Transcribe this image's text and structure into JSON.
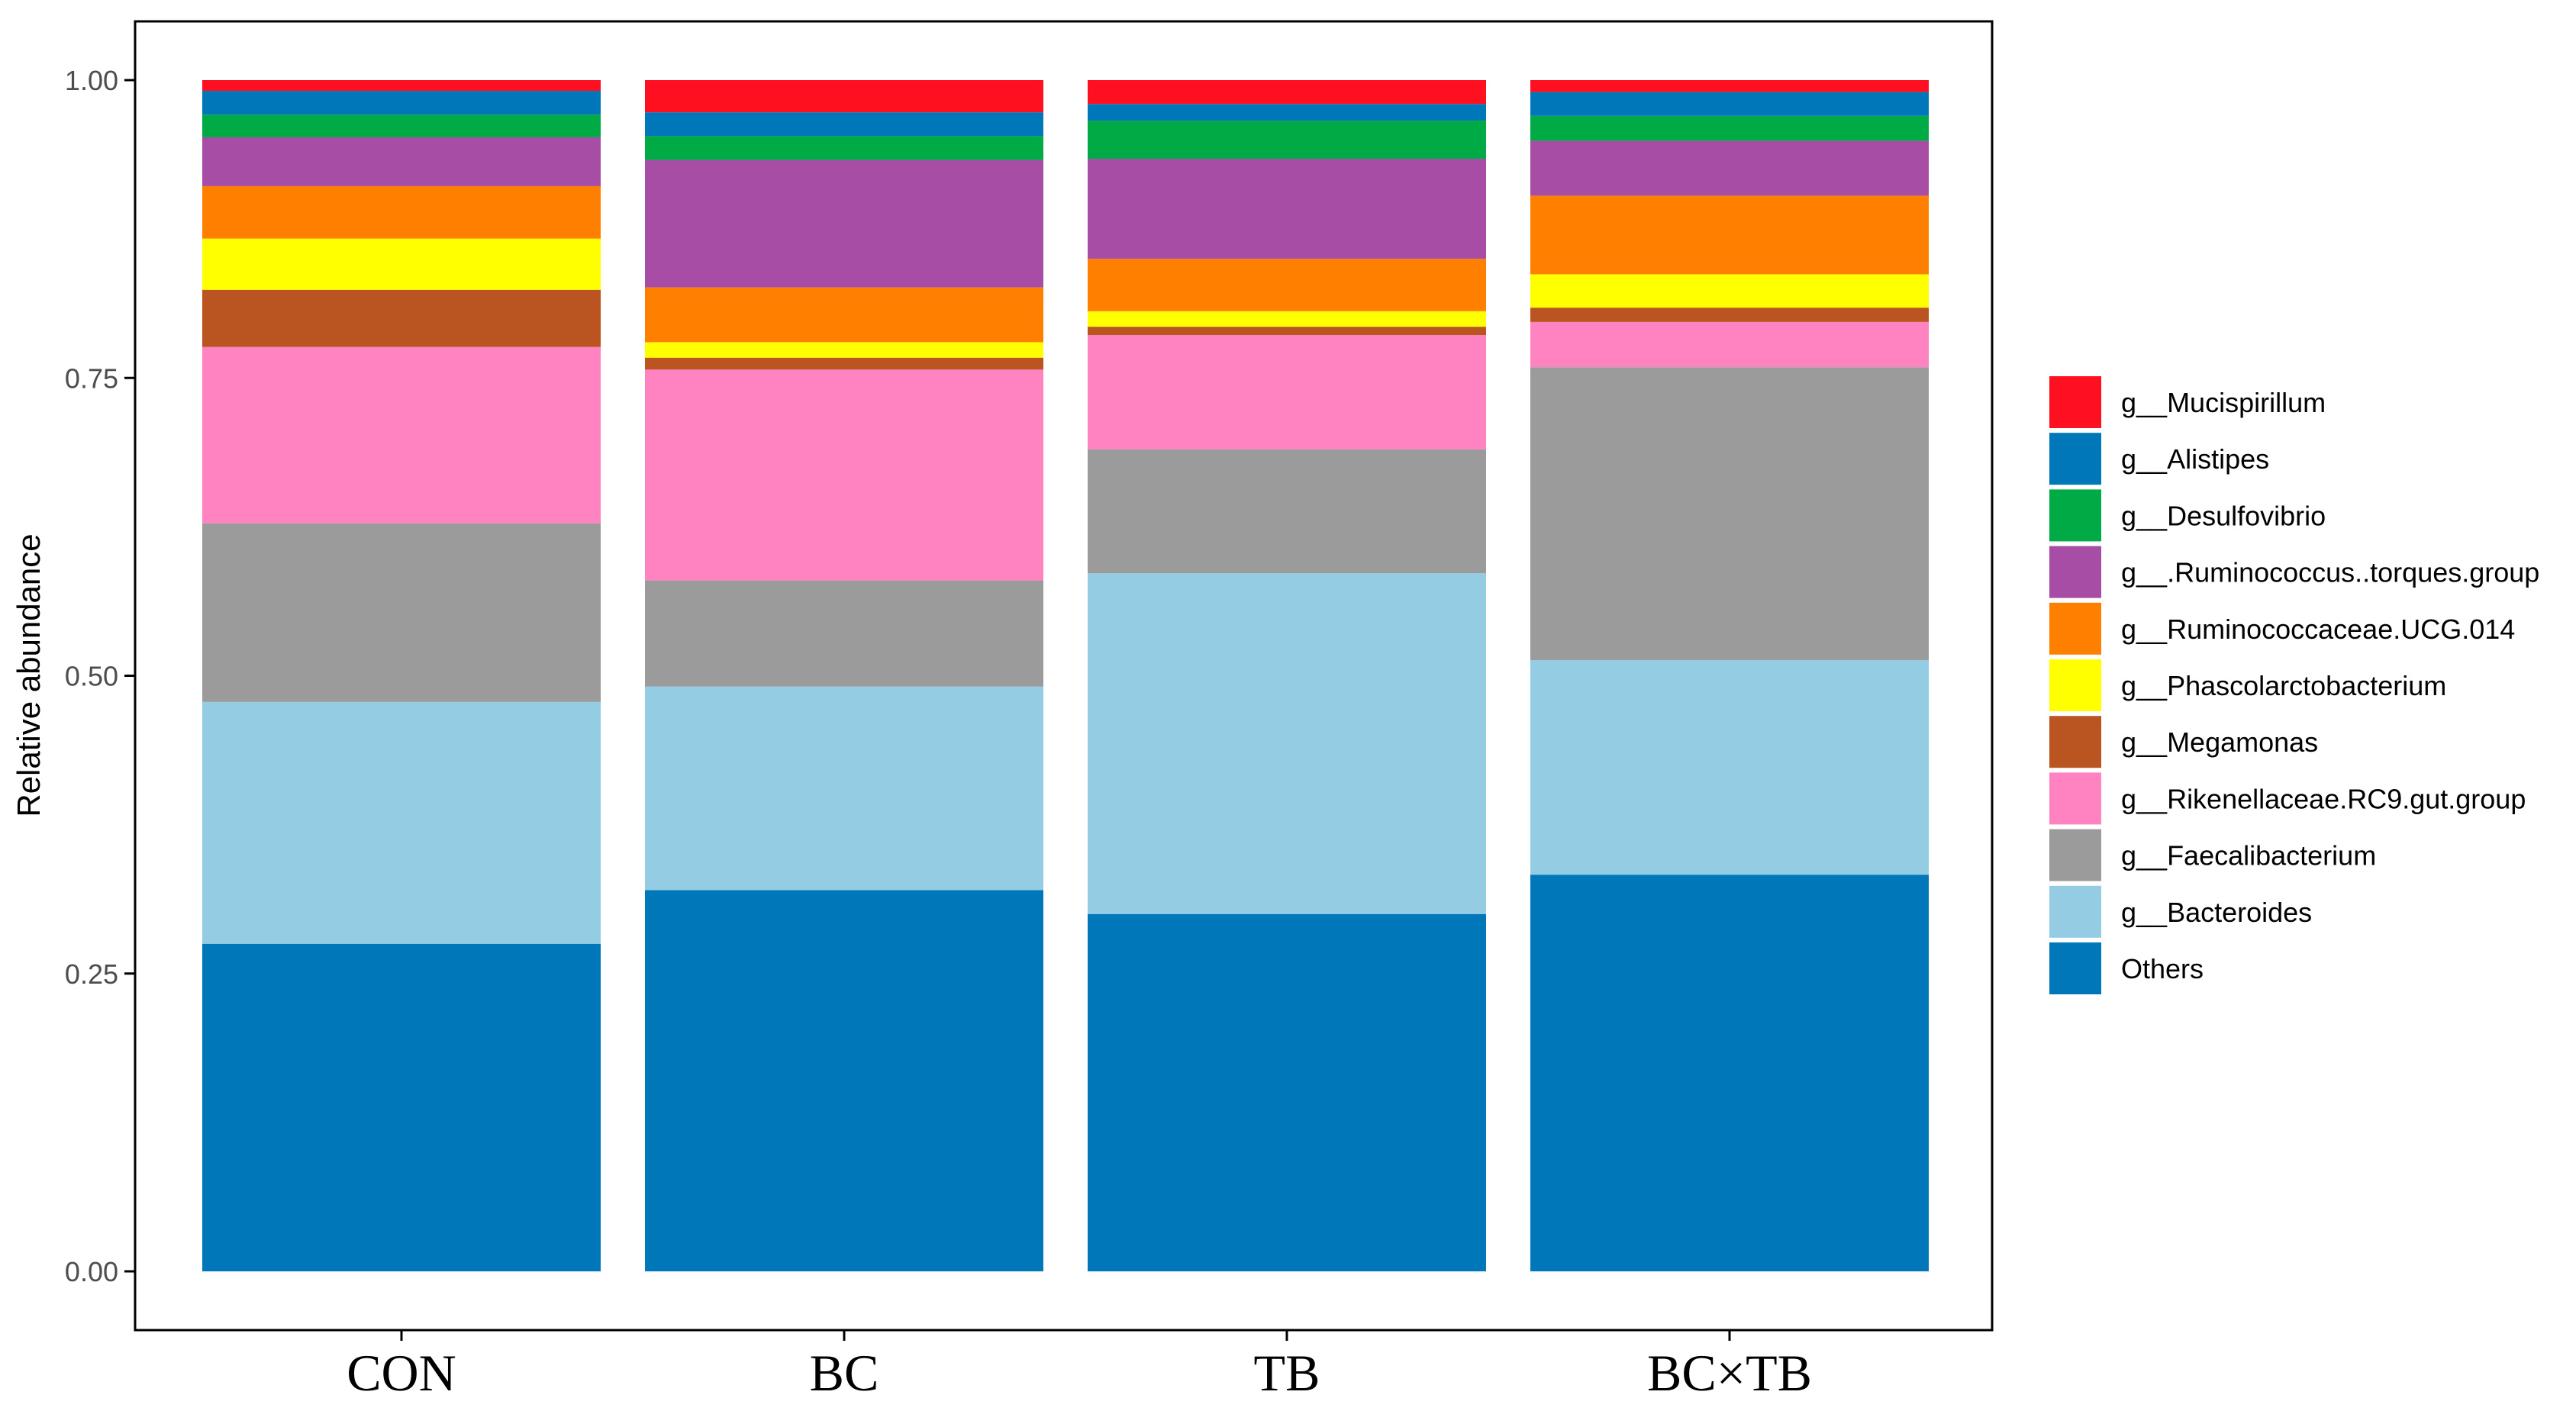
{
  "chart_data": {
    "type": "bar",
    "stacked": true,
    "ylabel": "Relative abundance",
    "xlabel": "",
    "ylim": [
      0,
      1.0
    ],
    "yticks": [
      0.0,
      0.25,
      0.5,
      0.75,
      1.0
    ],
    "ytick_labels": [
      "0.00",
      "0.25",
      "0.50",
      "0.75",
      "1.00"
    ],
    "categories": [
      "CON",
      "BC",
      "TB",
      "BC×TB"
    ],
    "legend_position": "right",
    "series": [
      {
        "name": "Others",
        "color": "#0077B8",
        "values": [
          0.275,
          0.32,
          0.3,
          0.333
        ]
      },
      {
        "name": "g__Bacteroides",
        "color": "#94CCE4",
        "values": [
          0.203,
          0.171,
          0.286,
          0.18
        ]
      },
      {
        "name": "g__Faecalibacterium",
        "color": "#9B9B9B",
        "values": [
          0.15,
          0.089,
          0.104,
          0.246
        ]
      },
      {
        "name": "g__Rikenellaceae.RC9.gut.group",
        "color": "#FF83C1",
        "values": [
          0.148,
          0.177,
          0.096,
          0.038
        ]
      },
      {
        "name": "g__Megamonas",
        "color": "#BA5420",
        "values": [
          0.048,
          0.01,
          0.007,
          0.012
        ]
      },
      {
        "name": "g__Phascolarctobacterium",
        "color": "#FFFF00",
        "values": [
          0.043,
          0.013,
          0.013,
          0.028
        ]
      },
      {
        "name": "g__Ruminococcaceae.UCG.014",
        "color": "#FF7F00",
        "values": [
          0.044,
          0.046,
          0.044,
          0.066
        ]
      },
      {
        "name": "g__.Ruminococcus..torques.group",
        "color": "#A84DA6",
        "values": [
          0.041,
          0.107,
          0.084,
          0.046
        ]
      },
      {
        "name": "g__Desulfovibrio",
        "color": "#00AA44",
        "values": [
          0.019,
          0.02,
          0.032,
          0.021
        ]
      },
      {
        "name": "g__Alistipes",
        "color": "#0077B8",
        "values": [
          0.02,
          0.02,
          0.014,
          0.02
        ]
      },
      {
        "name": "g__Mucispirillum",
        "color": "#FF1020",
        "values": [
          0.009,
          0.027,
          0.02,
          0.01
        ]
      }
    ],
    "legend_order": [
      "g__Mucispirillum",
      "g__Alistipes",
      "g__Desulfovibrio",
      "g__.Ruminococcus..torques.group",
      "g__Ruminococcaceae.UCG.014",
      "g__Phascolarctobacterium",
      "g__Megamonas",
      "g__Rikenellaceae.RC9.gut.group",
      "g__Faecalibacterium",
      "g__Bacteroides",
      "Others"
    ]
  }
}
